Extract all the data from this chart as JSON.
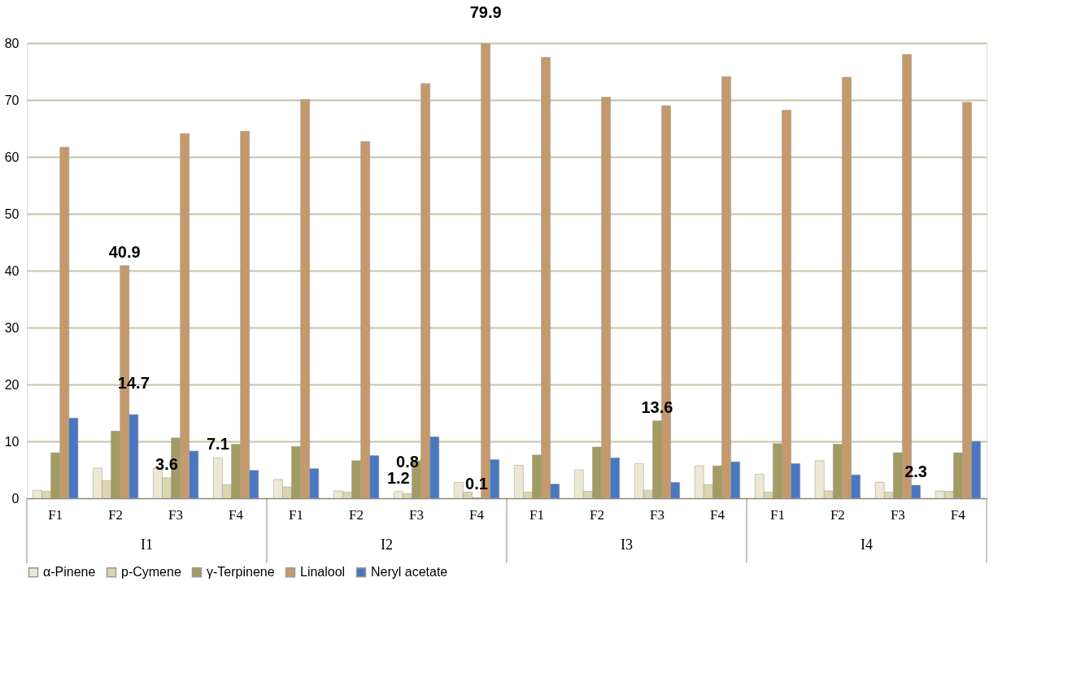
{
  "chart_data": {
    "type": "bar",
    "categories": [
      "F1",
      "F2",
      "F3",
      "F4",
      "F1",
      "F2",
      "F3",
      "F4",
      "F1",
      "F2",
      "F3",
      "F4",
      "F1",
      "F2",
      "F3",
      "F4"
    ],
    "annotations": [
      "I1",
      "I2",
      "I3",
      "I4"
    ],
    "series": [
      {
        "name": "α-Pinene",
        "color": "#ece8d2",
        "values": [
          1.4,
          5.3,
          5.3,
          7.1,
          3.3,
          1.3,
          1.2,
          2.8,
          5.8,
          5.0,
          6.1,
          5.7,
          4.2,
          6.6,
          2.8,
          1.3
        ],
        "value_labels": [
          null,
          null,
          null,
          "7.1",
          null,
          null,
          "1.2",
          null,
          null,
          null,
          null,
          null,
          null,
          null,
          null,
          null
        ]
      },
      {
        "name": "p-Cymene",
        "color": "#ddd4b0",
        "values": [
          1.2,
          3.1,
          3.6,
          2.4,
          2.0,
          1.1,
          0.8,
          1.1,
          1.1,
          1.2,
          1.4,
          2.4,
          1.1,
          1.3,
          1.1,
          1.2
        ],
        "value_labels": [
          null,
          null,
          "3.6",
          null,
          null,
          null,
          "0.8",
          null,
          null,
          null,
          null,
          null,
          null,
          null,
          null,
          null
        ]
      },
      {
        "name": "γ-Terpinene",
        "color": "#a39c62",
        "values": [
          8.0,
          11.8,
          10.6,
          9.5,
          9.1,
          6.6,
          6.6,
          0.1,
          7.6,
          9.0,
          13.6,
          5.7,
          9.6,
          9.5,
          8.0,
          8.0
        ],
        "value_labels": [
          null,
          null,
          null,
          null,
          null,
          null,
          null,
          "0.1",
          null,
          null,
          "13.6",
          null,
          null,
          null,
          null,
          null
        ]
      },
      {
        "name": "Linalool",
        "color": "#c49a6c",
        "values": [
          61.7,
          40.9,
          64.1,
          64.5,
          70.1,
          62.7,
          72.9,
          79.9,
          77.5,
          70.5,
          69.0,
          74.1,
          68.2,
          74.0,
          78.0,
          69.6
        ],
        "value_labels": [
          null,
          "40.9",
          null,
          null,
          null,
          null,
          null,
          "79.9",
          null,
          null,
          null,
          null,
          null,
          null,
          null,
          null
        ]
      },
      {
        "name": "Neryl acetate",
        "color": "#4a78c0",
        "values": [
          14.1,
          14.7,
          8.3,
          4.9,
          5.2,
          7.5,
          10.8,
          6.8,
          2.5,
          7.1,
          2.8,
          6.4,
          6.1,
          4.1,
          2.3,
          10.0
        ],
        "value_labels": [
          null,
          "14.7",
          null,
          null,
          null,
          null,
          null,
          null,
          null,
          null,
          null,
          null,
          null,
          null,
          "2.3",
          null
        ]
      }
    ],
    "ylim": [
      0,
      80
    ],
    "yticks": [
      0,
      10,
      20,
      30,
      40,
      50,
      60,
      70,
      80
    ],
    "grid": "y",
    "legend": "bottom"
  }
}
